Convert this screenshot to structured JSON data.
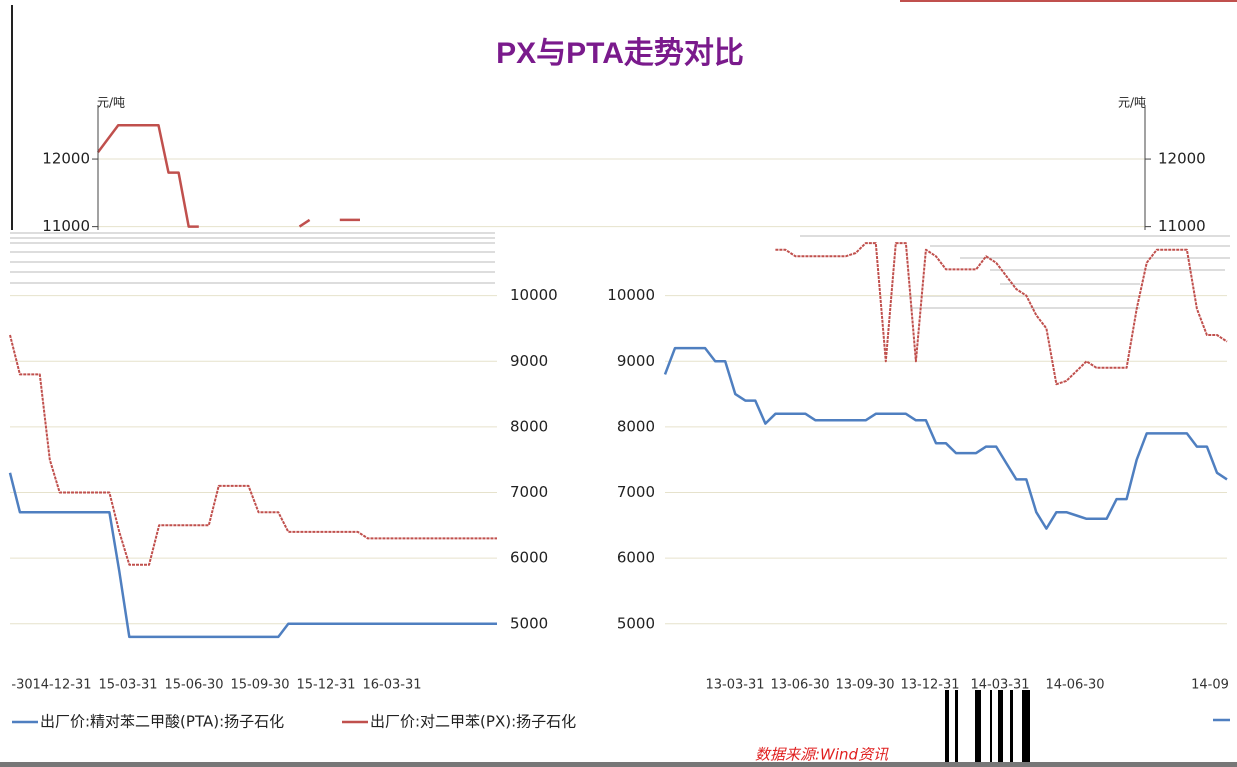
{
  "chart_data": [
    {
      "type": "line",
      "title": "PX与PTA走势对比",
      "y_label": "元/吨",
      "y2_label": "元/吨",
      "categories": [
        null,
        null,
        null,
        null,
        null,
        null,
        null,
        null,
        null,
        null,
        null,
        null,
        null,
        null,
        null,
        null,
        null,
        null,
        null,
        null,
        null,
        null,
        null,
        null,
        null,
        null,
        null
      ],
      "series": [
        {
          "color": "#c0504d",
          "values": [
            12100,
            12300,
            12500,
            12500,
            12500,
            12500,
            12500,
            11800,
            11800,
            11000,
            11000,
            null,
            null,
            null,
            null,
            null,
            null,
            null,
            null,
            null,
            11000,
            11100,
            null,
            null,
            11100,
            11100,
            11100
          ]
        }
      ],
      "ylim": [
        10950,
        12800
      ],
      "yticks": [
        11000,
        12000
      ],
      "y2lim": [
        10950,
        12800
      ],
      "y2ticks": [
        11000,
        12000
      ],
      "grid": true
    },
    {
      "type": "line",
      "y_axis_side": "right",
      "categories": [
        null,
        null,
        null,
        null,
        null,
        null,
        null,
        null,
        null,
        null,
        null,
        null,
        null,
        null,
        null,
        null,
        null,
        null,
        null,
        null,
        null,
        null,
        null,
        null,
        null,
        null,
        null,
        null,
        null,
        null,
        null,
        null,
        null,
        null,
        null,
        null,
        null,
        null,
        null,
        null,
        null,
        null,
        null,
        null,
        null,
        null,
        null,
        null,
        null,
        null
      ],
      "x_labels": [
        "-30",
        "14-12-31",
        "15-03-31",
        "15-06-30",
        "15-09-30",
        "15-12-31",
        "16-03-31"
      ],
      "series": [
        {
          "name": "出厂价:精对苯二甲酸(PTA):扬子石化",
          "color": "#4f7fc0",
          "values": [
            7300,
            6700,
            6700,
            6700,
            6700,
            6700,
            6700,
            6700,
            6700,
            6700,
            6700,
            5800,
            4800,
            4800,
            4800,
            4800,
            4800,
            4800,
            4800,
            4800,
            4800,
            4800,
            4800,
            4800,
            4800,
            4800,
            4800,
            4800,
            5000,
            5000,
            5000,
            5000,
            5000,
            5000,
            5000,
            5000,
            5000,
            5000,
            5000,
            5000,
            5000,
            5000,
            5000,
            5000,
            5000,
            5000,
            5000,
            5000,
            5000,
            5000
          ]
        },
        {
          "name": "出厂价:对二甲苯(PX):扬子石化",
          "color": "#c0504d",
          "values": [
            9400,
            8800,
            8800,
            8800,
            7500,
            7000,
            7000,
            7000,
            7000,
            7000,
            7000,
            6400,
            5900,
            5900,
            5900,
            6500,
            6500,
            6500,
            6500,
            6500,
            6500,
            7100,
            7100,
            7100,
            7100,
            6700,
            6700,
            6700,
            6400,
            6400,
            6400,
            6400,
            6400,
            6400,
            6400,
            6400,
            6300,
            6300,
            6300,
            6300,
            6300,
            6300,
            6300,
            6300,
            6300,
            6300,
            6300,
            6300,
            6300,
            6300
          ]
        }
      ],
      "ylim": [
        4600,
        11000
      ],
      "yticks": [
        5000,
        6000,
        7000,
        8000,
        9000,
        10000
      ],
      "grid": true
    },
    {
      "type": "line",
      "y_axis_side": "left",
      "categories": [
        null,
        null,
        null,
        null,
        null,
        null,
        null,
        null,
        null,
        null,
        null,
        null,
        null,
        null,
        null,
        null,
        null,
        null,
        null,
        null,
        null,
        null,
        null,
        null,
        null,
        null,
        null,
        null,
        null,
        null,
        null,
        null,
        null,
        null,
        null,
        null,
        null,
        null,
        null,
        null,
        null,
        null,
        null,
        null,
        null,
        null,
        null,
        null,
        null,
        null,
        null,
        null,
        null,
        null,
        null,
        null,
        null
      ],
      "x_labels": [
        "13-03-31",
        "13-06-30",
        "13-09-30",
        "13-12-31",
        "14-03-31",
        "14-06-30",
        "14-09"
      ],
      "series": [
        {
          "color": "#4f7fc0",
          "values": [
            8800,
            9200,
            9200,
            9200,
            9200,
            9000,
            9000,
            8500,
            8400,
            8400,
            8050,
            8200,
            8200,
            8200,
            8200,
            8100,
            8100,
            8100,
            8100,
            8100,
            8100,
            8200,
            8200,
            8200,
            8200,
            8100,
            8100,
            7750,
            7750,
            7600,
            7600,
            7600,
            7700,
            7700,
            7450,
            7200,
            7200,
            6700,
            6450,
            6700,
            6700,
            6650,
            6600,
            6600,
            6600,
            6900,
            6900,
            7500,
            7900,
            7900,
            7900,
            7900,
            7900,
            7700,
            7700,
            7300,
            7200
          ]
        },
        {
          "color": "#c0504d",
          "values": [
            null,
            null,
            null,
            null,
            null,
            null,
            null,
            null,
            null,
            null,
            null,
            10700,
            10700,
            10600,
            10600,
            10600,
            10600,
            10600,
            10600,
            10650,
            10800,
            10800,
            9000,
            10800,
            10800,
            9000,
            10700,
            10600,
            10400,
            10400,
            10400,
            10400,
            10600,
            10500,
            10300,
            10100,
            10000,
            9700,
            9500,
            8650,
            8700,
            8850,
            9000,
            8900,
            8900,
            8900,
            8900,
            9800,
            10500,
            10700,
            10700,
            10700,
            10700,
            9800,
            9400,
            9400,
            9300
          ]
        }
      ],
      "ylim": [
        4600,
        11000
      ],
      "yticks": [
        5000,
        6000,
        7000,
        8000,
        9000,
        10000
      ],
      "grid": true
    }
  ],
  "source": "数据来源:Wind资讯"
}
